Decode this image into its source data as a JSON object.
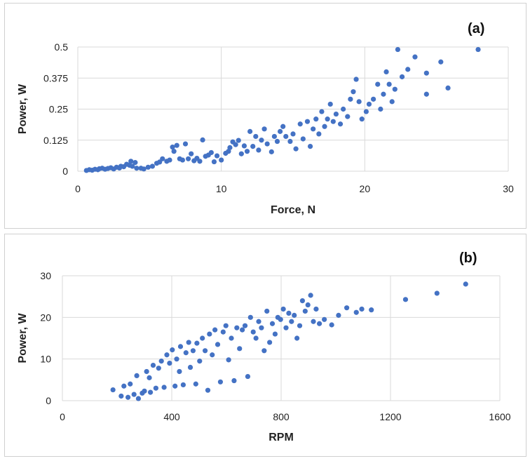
{
  "colors": {
    "point": "#4472c4",
    "grid": "#d9d9d9",
    "axis_text": "#222222"
  },
  "chart_data": [
    {
      "type": "scatter",
      "panel_label": "(a)",
      "title": "",
      "xlabel": "Force, N",
      "ylabel": "Power, W",
      "xlim": [
        0,
        30
      ],
      "ylim": [
        0,
        0.5
      ],
      "xticks": [
        0,
        10,
        20,
        30
      ],
      "yticks": [
        0,
        0.125,
        0.25,
        0.375,
        0.5
      ],
      "xtick_labels": [
        "0",
        "10",
        "20",
        "30"
      ],
      "ytick_labels": [
        "0",
        "0.125",
        "0.25",
        "0.375",
        "0.5"
      ],
      "grid": true,
      "series": [
        {
          "points": [
            [
              0.6,
              0.003
            ],
            [
              0.8,
              0.006
            ],
            [
              1.0,
              0.004
            ],
            [
              1.2,
              0.008
            ],
            [
              1.4,
              0.006
            ],
            [
              1.5,
              0.01
            ],
            [
              1.7,
              0.012
            ],
            [
              1.9,
              0.008
            ],
            [
              2.1,
              0.011
            ],
            [
              2.3,
              0.014
            ],
            [
              2.5,
              0.009
            ],
            [
              2.7,
              0.016
            ],
            [
              2.9,
              0.013
            ],
            [
              3.0,
              0.02
            ],
            [
              3.2,
              0.018
            ],
            [
              3.4,
              0.028
            ],
            [
              3.6,
              0.024
            ],
            [
              3.7,
              0.04
            ],
            [
              3.8,
              0.02
            ],
            [
              4.0,
              0.035
            ],
            [
              4.1,
              0.012
            ],
            [
              4.4,
              0.012
            ],
            [
              4.6,
              0.009
            ],
            [
              4.9,
              0.016
            ],
            [
              5.2,
              0.02
            ],
            [
              5.5,
              0.032
            ],
            [
              5.7,
              0.037
            ],
            [
              5.9,
              0.05
            ],
            [
              6.2,
              0.04
            ],
            [
              6.4,
              0.045
            ],
            [
              6.6,
              0.097
            ],
            [
              6.7,
              0.08
            ],
            [
              6.9,
              0.104
            ],
            [
              7.1,
              0.05
            ],
            [
              7.3,
              0.045
            ],
            [
              7.5,
              0.11
            ],
            [
              7.7,
              0.05
            ],
            [
              7.9,
              0.07
            ],
            [
              8.1,
              0.042
            ],
            [
              8.3,
              0.052
            ],
            [
              8.5,
              0.04
            ],
            [
              8.7,
              0.126
            ],
            [
              8.9,
              0.06
            ],
            [
              9.1,
              0.065
            ],
            [
              9.3,
              0.075
            ],
            [
              9.5,
              0.038
            ],
            [
              9.7,
              0.062
            ],
            [
              10.0,
              0.045
            ],
            [
              10.3,
              0.072
            ],
            [
              10.5,
              0.08
            ],
            [
              10.6,
              0.095
            ],
            [
              10.8,
              0.118
            ],
            [
              11.0,
              0.107
            ],
            [
              11.2,
              0.124
            ],
            [
              11.4,
              0.07
            ],
            [
              11.6,
              0.102
            ],
            [
              11.8,
              0.08
            ],
            [
              12.0,
              0.16
            ],
            [
              12.2,
              0.1
            ],
            [
              12.4,
              0.14
            ],
            [
              12.6,
              0.085
            ],
            [
              12.8,
              0.125
            ],
            [
              13.0,
              0.17
            ],
            [
              13.2,
              0.11
            ],
            [
              13.5,
              0.078
            ],
            [
              13.7,
              0.14
            ],
            [
              13.9,
              0.12
            ],
            [
              14.1,
              0.16
            ],
            [
              14.3,
              0.18
            ],
            [
              14.5,
              0.14
            ],
            [
              14.8,
              0.12
            ],
            [
              15.0,
              0.15
            ],
            [
              15.2,
              0.09
            ],
            [
              15.5,
              0.19
            ],
            [
              15.7,
              0.13
            ],
            [
              16.0,
              0.2
            ],
            [
              16.2,
              0.1
            ],
            [
              16.4,
              0.17
            ],
            [
              16.6,
              0.21
            ],
            [
              16.8,
              0.15
            ],
            [
              17.0,
              0.24
            ],
            [
              17.2,
              0.18
            ],
            [
              17.4,
              0.21
            ],
            [
              17.6,
              0.27
            ],
            [
              17.8,
              0.2
            ],
            [
              18.0,
              0.23
            ],
            [
              18.3,
              0.19
            ],
            [
              18.5,
              0.25
            ],
            [
              18.8,
              0.22
            ],
            [
              19.0,
              0.29
            ],
            [
              19.2,
              0.32
            ],
            [
              19.4,
              0.37
            ],
            [
              19.6,
              0.28
            ],
            [
              19.8,
              0.21
            ],
            [
              20.1,
              0.24
            ],
            [
              20.3,
              0.27
            ],
            [
              20.6,
              0.29
            ],
            [
              20.9,
              0.35
            ],
            [
              21.1,
              0.25
            ],
            [
              21.3,
              0.31
            ],
            [
              21.5,
              0.4
            ],
            [
              21.7,
              0.35
            ],
            [
              21.9,
              0.28
            ],
            [
              22.1,
              0.33
            ],
            [
              22.3,
              0.49
            ],
            [
              22.6,
              0.38
            ],
            [
              23.0,
              0.41
            ],
            [
              23.5,
              0.46
            ],
            [
              24.3,
              0.31
            ],
            [
              24.3,
              0.395
            ],
            [
              25.3,
              0.44
            ],
            [
              25.8,
              0.335
            ],
            [
              27.9,
              0.49
            ]
          ]
        }
      ]
    },
    {
      "type": "scatter",
      "panel_label": "(b)",
      "title": "",
      "xlabel": "RPM",
      "ylabel": "Power, W",
      "xlim": [
        0,
        1600
      ],
      "ylim": [
        0,
        30
      ],
      "xticks": [
        0,
        400,
        800,
        1200,
        1600
      ],
      "yticks": [
        0,
        10,
        20,
        30
      ],
      "xtick_labels": [
        "0",
        "400",
        "800",
        "1200",
        "1600"
      ],
      "ytick_labels": [
        "0",
        "10",
        "20",
        "30"
      ],
      "grid": true,
      "series": [
        {
          "points": [
            [
              185,
              2.6
            ],
            [
              215,
              1.1
            ],
            [
              225,
              3.5
            ],
            [
              240,
              0.8
            ],
            [
              248,
              4.0
            ],
            [
              262,
              1.5
            ],
            [
              272,
              6.0
            ],
            [
              278,
              0.5
            ],
            [
              292,
              1.8
            ],
            [
              300,
              2.3
            ],
            [
              308,
              7.0
            ],
            [
              318,
              5.5
            ],
            [
              322,
              2.0
            ],
            [
              332,
              8.5
            ],
            [
              342,
              3.0
            ],
            [
              352,
              7.8
            ],
            [
              362,
              9.5
            ],
            [
              372,
              3.2
            ],
            [
              382,
              11.0
            ],
            [
              392,
              9.0
            ],
            [
              402,
              12.2
            ],
            [
              412,
              3.5
            ],
            [
              418,
              10.0
            ],
            [
              428,
              7.0
            ],
            [
              432,
              13.0
            ],
            [
              442,
              3.8
            ],
            [
              452,
              11.5
            ],
            [
              462,
              14.0
            ],
            [
              468,
              8.0
            ],
            [
              478,
              12.0
            ],
            [
              488,
              4.0
            ],
            [
              492,
              13.8
            ],
            [
              502,
              9.5
            ],
            [
              512,
              15.0
            ],
            [
              522,
              12.0
            ],
            [
              532,
              2.5
            ],
            [
              538,
              16.0
            ],
            [
              548,
              11.0
            ],
            [
              558,
              17.0
            ],
            [
              568,
              13.5
            ],
            [
              578,
              4.5
            ],
            [
              588,
              16.5
            ],
            [
              598,
              18.0
            ],
            [
              608,
              9.8
            ],
            [
              618,
              15.0
            ],
            [
              628,
              4.8
            ],
            [
              638,
              17.5
            ],
            [
              648,
              12.5
            ],
            [
              658,
              17.0
            ],
            [
              668,
              18.0
            ],
            [
              678,
              5.8
            ],
            [
              688,
              20.0
            ],
            [
              698,
              16.5
            ],
            [
              708,
              15.0
            ],
            [
              718,
              19.0
            ],
            [
              728,
              17.5
            ],
            [
              738,
              12.0
            ],
            [
              748,
              21.5
            ],
            [
              758,
              14.0
            ],
            [
              768,
              18.5
            ],
            [
              778,
              16.0
            ],
            [
              788,
              20.0
            ],
            [
              798,
              19.5
            ],
            [
              808,
              22.0
            ],
            [
              818,
              17.5
            ],
            [
              828,
              21.0
            ],
            [
              838,
              19.0
            ],
            [
              848,
              20.5
            ],
            [
              858,
              15.0
            ],
            [
              868,
              18.0
            ],
            [
              878,
              24.0
            ],
            [
              888,
              21.5
            ],
            [
              898,
              23.0
            ],
            [
              908,
              25.3
            ],
            [
              918,
              19.0
            ],
            [
              928,
              22.0
            ],
            [
              940,
              18.5
            ],
            [
              958,
              19.5
            ],
            [
              985,
              18.2
            ],
            [
              1010,
              20.5
            ],
            [
              1040,
              22.3
            ],
            [
              1075,
              21.2
            ],
            [
              1095,
              22.0
            ],
            [
              1130,
              21.8
            ],
            [
              1255,
              24.3
            ],
            [
              1370,
              25.8
            ],
            [
              1475,
              28.0
            ]
          ]
        }
      ]
    }
  ]
}
